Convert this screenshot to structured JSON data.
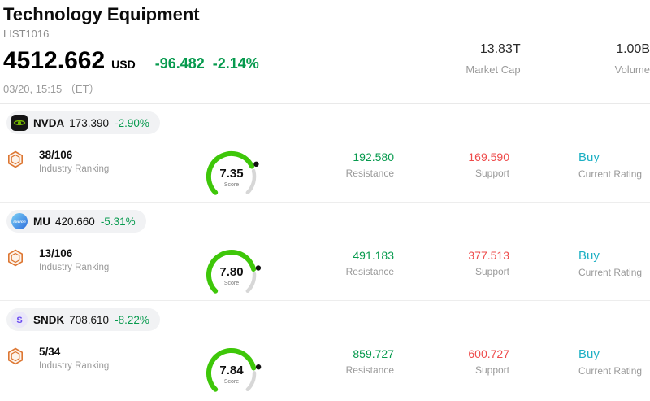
{
  "header": {
    "title": "Technology Equipment",
    "list_id": "LIST1016",
    "price": "4512.662",
    "currency": "USD",
    "change": "-96.482",
    "change_pct": "-2.14%",
    "datetime": "03/20, 15:15 （ET）",
    "market_cap": "13.83T",
    "market_cap_label": "Market Cap",
    "volume": "1.00B",
    "volume_label": "Volume"
  },
  "labels": {
    "industry_ranking": "Industry Ranking",
    "score": "Score",
    "resistance": "Resistance",
    "support": "Support",
    "current_rating": "Current Rating"
  },
  "stocks": [
    {
      "ticker": "NVDA",
      "price": "173.390",
      "change_pct": "-2.90%",
      "ranking": "38/106",
      "score": "7.35",
      "resistance": "192.580",
      "support": "169.590",
      "rating": "Buy"
    },
    {
      "ticker": "MU",
      "price": "420.660",
      "change_pct": "-5.31%",
      "ranking": "13/106",
      "score": "7.80",
      "resistance": "491.183",
      "support": "377.513",
      "rating": "Buy",
      "logo_text": "micron"
    },
    {
      "ticker": "SNDK",
      "price": "708.610",
      "change_pct": "-8.22%",
      "ranking": "5/34",
      "score": "7.84",
      "resistance": "859.727",
      "support": "600.727",
      "rating": "Buy",
      "logo_letter": "S"
    }
  ],
  "colors": {
    "change_green": "#079a4e",
    "support_red": "#ee4b4b",
    "rating_teal": "#1db0c4",
    "gauge_green": "#3ec709",
    "gauge_track": "#d7d7d7",
    "nvidia_green": "#76b900"
  }
}
